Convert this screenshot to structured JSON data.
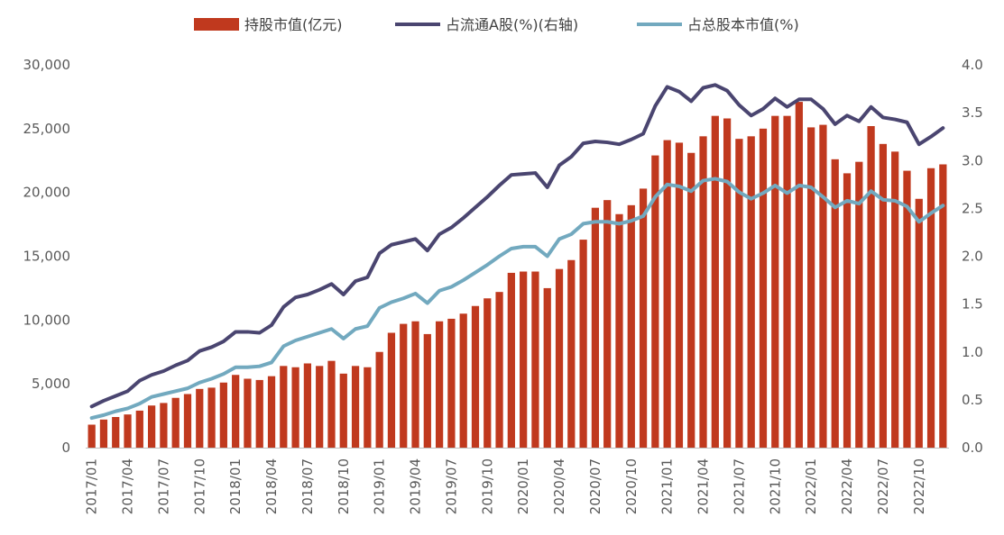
{
  "colors": {
    "bar": "#C0391E",
    "line_a_share": "#4A4570",
    "line_total": "#72A9BF",
    "axis": "#BFBFBF",
    "text": "#595959"
  },
  "legend": {
    "position": "top",
    "items": [
      {
        "label": "持股市值(亿元)",
        "shape": "bar",
        "color": "#C0391E"
      },
      {
        "label": "占流通A股(%)(右轴)",
        "shape": "line",
        "color": "#4A4570"
      },
      {
        "label": "占总股本市值(%)",
        "shape": "line",
        "color": "#72A9BF"
      }
    ]
  },
  "chart_data": {
    "type": "bar+line",
    "title": "",
    "xlabel": "",
    "ylabel": "",
    "x": [
      "2017/01",
      "2017/02",
      "2017/03",
      "2017/04",
      "2017/05",
      "2017/06",
      "2017/07",
      "2017/08",
      "2017/09",
      "2017/10",
      "2017/11",
      "2017/12",
      "2018/01",
      "2018/02",
      "2018/03",
      "2018/04",
      "2018/05",
      "2018/06",
      "2018/07",
      "2018/08",
      "2018/09",
      "2018/10",
      "2018/11",
      "2018/12",
      "2019/01",
      "2019/02",
      "2019/03",
      "2019/04",
      "2019/05",
      "2019/06",
      "2019/07",
      "2019/08",
      "2019/09",
      "2019/10",
      "2019/11",
      "2019/12",
      "2020/01",
      "2020/02",
      "2020/03",
      "2020/04",
      "2020/05",
      "2020/06",
      "2020/07",
      "2020/08",
      "2020/09",
      "2020/10",
      "2020/11",
      "2020/12",
      "2021/01",
      "2021/02",
      "2021/03",
      "2021/04",
      "2021/05",
      "2021/06",
      "2021/07",
      "2021/08",
      "2021/09",
      "2021/10",
      "2021/11",
      "2021/12",
      "2022/01",
      "2022/02",
      "2022/03",
      "2022/04",
      "2022/05",
      "2022/06",
      "2022/07",
      "2022/08",
      "2022/09",
      "2022/10",
      "2022/11",
      "2022/12"
    ],
    "x_tick_labels": [
      "2017/01",
      "2017/04",
      "2017/07",
      "2017/10",
      "2018/01",
      "2018/04",
      "2018/07",
      "2018/10",
      "2019/01",
      "2019/04",
      "2019/07",
      "2019/10",
      "2020/01",
      "2020/04",
      "2020/07",
      "2020/10",
      "2021/01",
      "2021/04",
      "2021/07",
      "2021/10",
      "2022/01",
      "2022/04",
      "2022/07",
      "2022/10"
    ],
    "y_left": {
      "range": [
        0,
        30000
      ],
      "ticks": [
        "0",
        "5,000",
        "10,000",
        "15,000",
        "20,000",
        "25,000",
        "30,000"
      ],
      "tick_values": [
        0,
        5000,
        10000,
        15000,
        20000,
        25000,
        30000
      ]
    },
    "y_right": {
      "range": [
        0,
        4.0
      ],
      "ticks": [
        "0.0",
        "0.5",
        "1.0",
        "1.5",
        "2.0",
        "2.5",
        "3.0",
        "3.5",
        "4.0"
      ],
      "tick_values": [
        0,
        0.5,
        1.0,
        1.5,
        2.0,
        2.5,
        3.0,
        3.5,
        4.0
      ]
    },
    "grid": false,
    "series": [
      {
        "name": "持股市值(亿元)",
        "type": "bar",
        "axis": "left",
        "values": [
          1800,
          2200,
          2400,
          2600,
          2900,
          3300,
          3500,
          3900,
          4200,
          4600,
          4700,
          5100,
          5700,
          5400,
          5300,
          5600,
          6400,
          6300,
          6600,
          6400,
          6800,
          5800,
          6400,
          6300,
          7500,
          9000,
          9700,
          9900,
          8900,
          9900,
          10100,
          10500,
          11100,
          11700,
          12200,
          13700,
          13800,
          13800,
          12500,
          14000,
          14700,
          16300,
          18800,
          19400,
          18300,
          19000,
          20300,
          22900,
          24100,
          23900,
          23100,
          24400,
          26000,
          25800,
          24200,
          24400,
          25000,
          26000,
          26000,
          27100,
          25100,
          25300,
          22600,
          21500,
          22400,
          25200,
          23800,
          23200,
          21700,
          19500,
          21900,
          22200
        ]
      },
      {
        "name": "占流通A股(%)(右轴)",
        "type": "line",
        "axis": "right",
        "values": [
          0.43,
          0.49,
          0.54,
          0.59,
          0.7,
          0.76,
          0.8,
          0.86,
          0.91,
          1.01,
          1.05,
          1.11,
          1.21,
          1.21,
          1.2,
          1.28,
          1.47,
          1.57,
          1.6,
          1.65,
          1.71,
          1.6,
          1.74,
          1.78,
          2.03,
          2.12,
          2.15,
          2.18,
          2.06,
          2.23,
          2.3,
          2.4,
          2.51,
          2.62,
          2.74,
          2.85,
          2.86,
          2.87,
          2.72,
          2.95,
          3.04,
          3.18,
          3.2,
          3.19,
          3.17,
          3.22,
          3.28,
          3.57,
          3.77,
          3.72,
          3.62,
          3.76,
          3.79,
          3.73,
          3.58,
          3.47,
          3.54,
          3.65,
          3.56,
          3.64,
          3.64,
          3.54,
          3.38,
          3.47,
          3.41,
          3.56,
          3.45,
          3.43,
          3.4,
          3.17,
          3.25,
          3.34
        ]
      },
      {
        "name": "占总股本市值(%)",
        "type": "line",
        "axis": "right",
        "values": [
          0.31,
          0.34,
          0.38,
          0.41,
          0.46,
          0.53,
          0.56,
          0.59,
          0.62,
          0.68,
          0.72,
          0.77,
          0.84,
          0.84,
          0.85,
          0.89,
          1.06,
          1.12,
          1.16,
          1.2,
          1.24,
          1.14,
          1.24,
          1.27,
          1.46,
          1.52,
          1.56,
          1.61,
          1.51,
          1.64,
          1.68,
          1.75,
          1.83,
          1.91,
          2.0,
          2.08,
          2.1,
          2.1,
          2.0,
          2.18,
          2.23,
          2.34,
          2.36,
          2.36,
          2.34,
          2.37,
          2.42,
          2.62,
          2.75,
          2.73,
          2.68,
          2.79,
          2.81,
          2.78,
          2.67,
          2.6,
          2.66,
          2.74,
          2.66,
          2.74,
          2.72,
          2.62,
          2.51,
          2.58,
          2.55,
          2.68,
          2.59,
          2.58,
          2.52,
          2.36,
          2.45,
          2.53
        ]
      }
    ]
  }
}
